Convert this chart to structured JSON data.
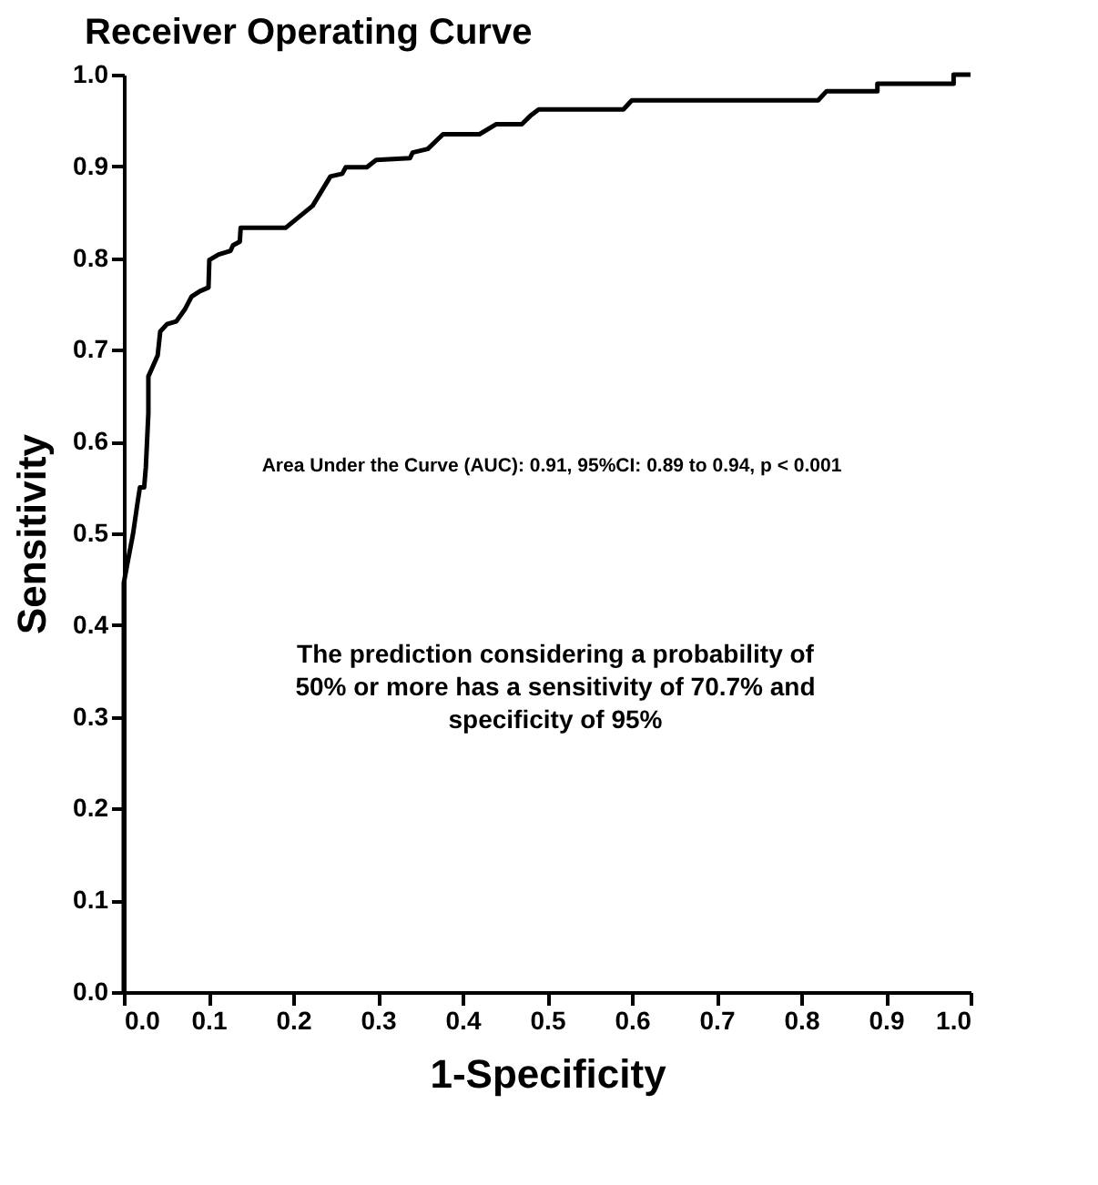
{
  "chart_data": {
    "type": "line",
    "title": "Receiver Operating Curve",
    "xlabel": "1-Specificity",
    "ylabel": "Sensitivity",
    "x": [
      0,
      0,
      0,
      0.004,
      0.011,
      0.016,
      0.019,
      0.024,
      0.026,
      0.029,
      0.029,
      0.04,
      0.043,
      0.051,
      0.062,
      0.072,
      0.08,
      0.09,
      0.1,
      0.101,
      0.112,
      0.126,
      0.129,
      0.137,
      0.138,
      0.191,
      0.223,
      0.244,
      0.258,
      0.262,
      0.287,
      0.298,
      0.338,
      0.341,
      0.359,
      0.377,
      0.42,
      0.44,
      0.47,
      0.48,
      0.49,
      0.59,
      0.6,
      0.82,
      0.83,
      0.89,
      0.89,
      0.98,
      0.98,
      1.0
    ],
    "series": [
      {
        "color": "#000000",
        "values": [
          0,
          0.427,
          0.446,
          0.466,
          0.5,
          0.532,
          0.55,
          0.55,
          0.572,
          0.631,
          0.671,
          0.694,
          0.72,
          0.728,
          0.731,
          0.744,
          0.758,
          0.764,
          0.768,
          0.798,
          0.804,
          0.808,
          0.814,
          0.818,
          0.833,
          0.833,
          0.857,
          0.889,
          0.892,
          0.899,
          0.899,
          0.907,
          0.909,
          0.915,
          0.919,
          0.935,
          0.935,
          0.946,
          0.946,
          0.955,
          0.962,
          0.962,
          0.972,
          0.972,
          0.982,
          0.982,
          0.99,
          0.99,
          1.0,
          1.0
        ]
      }
    ],
    "xlim": [
      0,
      1
    ],
    "ylim": [
      0,
      1
    ],
    "xticks": [
      {
        "value": 0,
        "label": "0.0"
      },
      {
        "value": 0.1,
        "label": "0.1"
      },
      {
        "value": 0.2,
        "label": "0.2"
      },
      {
        "value": 0.3,
        "label": "0.3"
      },
      {
        "value": 0.4,
        "label": "0.4"
      },
      {
        "value": 0.5,
        "label": "0.5"
      },
      {
        "value": 0.6,
        "label": "0.6"
      },
      {
        "value": 0.7,
        "label": "0.7"
      },
      {
        "value": 0.8,
        "label": "0.8"
      },
      {
        "value": 0.9,
        "label": "0.9"
      },
      {
        "value": 1,
        "label": "1.0"
      }
    ],
    "yticks": [
      {
        "value": 0,
        "label": "0.0"
      },
      {
        "value": 0.1,
        "label": "0.1"
      },
      {
        "value": 0.2,
        "label": "0.2"
      },
      {
        "value": 0.3,
        "label": "0.3"
      },
      {
        "value": 0.4,
        "label": "0.4"
      },
      {
        "value": 0.5,
        "label": "0.5"
      },
      {
        "value": 0.6,
        "label": "0.6"
      },
      {
        "value": 0.7,
        "label": "0.7"
      },
      {
        "value": 0.8,
        "label": "0.8"
      },
      {
        "value": 0.9,
        "label": "0.9"
      },
      {
        "value": 1,
        "label": "1.0"
      }
    ],
    "marker": "none",
    "line_style": "solid",
    "annotations": [
      "Area Under the Curve (AUC): 0.91, 95%CI: 0.89 to 0.94,  p < 0.001",
      "The prediction considering a probability of\n50% or more has a sensitivity of 70.7% and\nspecificity of 95%"
    ]
  }
}
